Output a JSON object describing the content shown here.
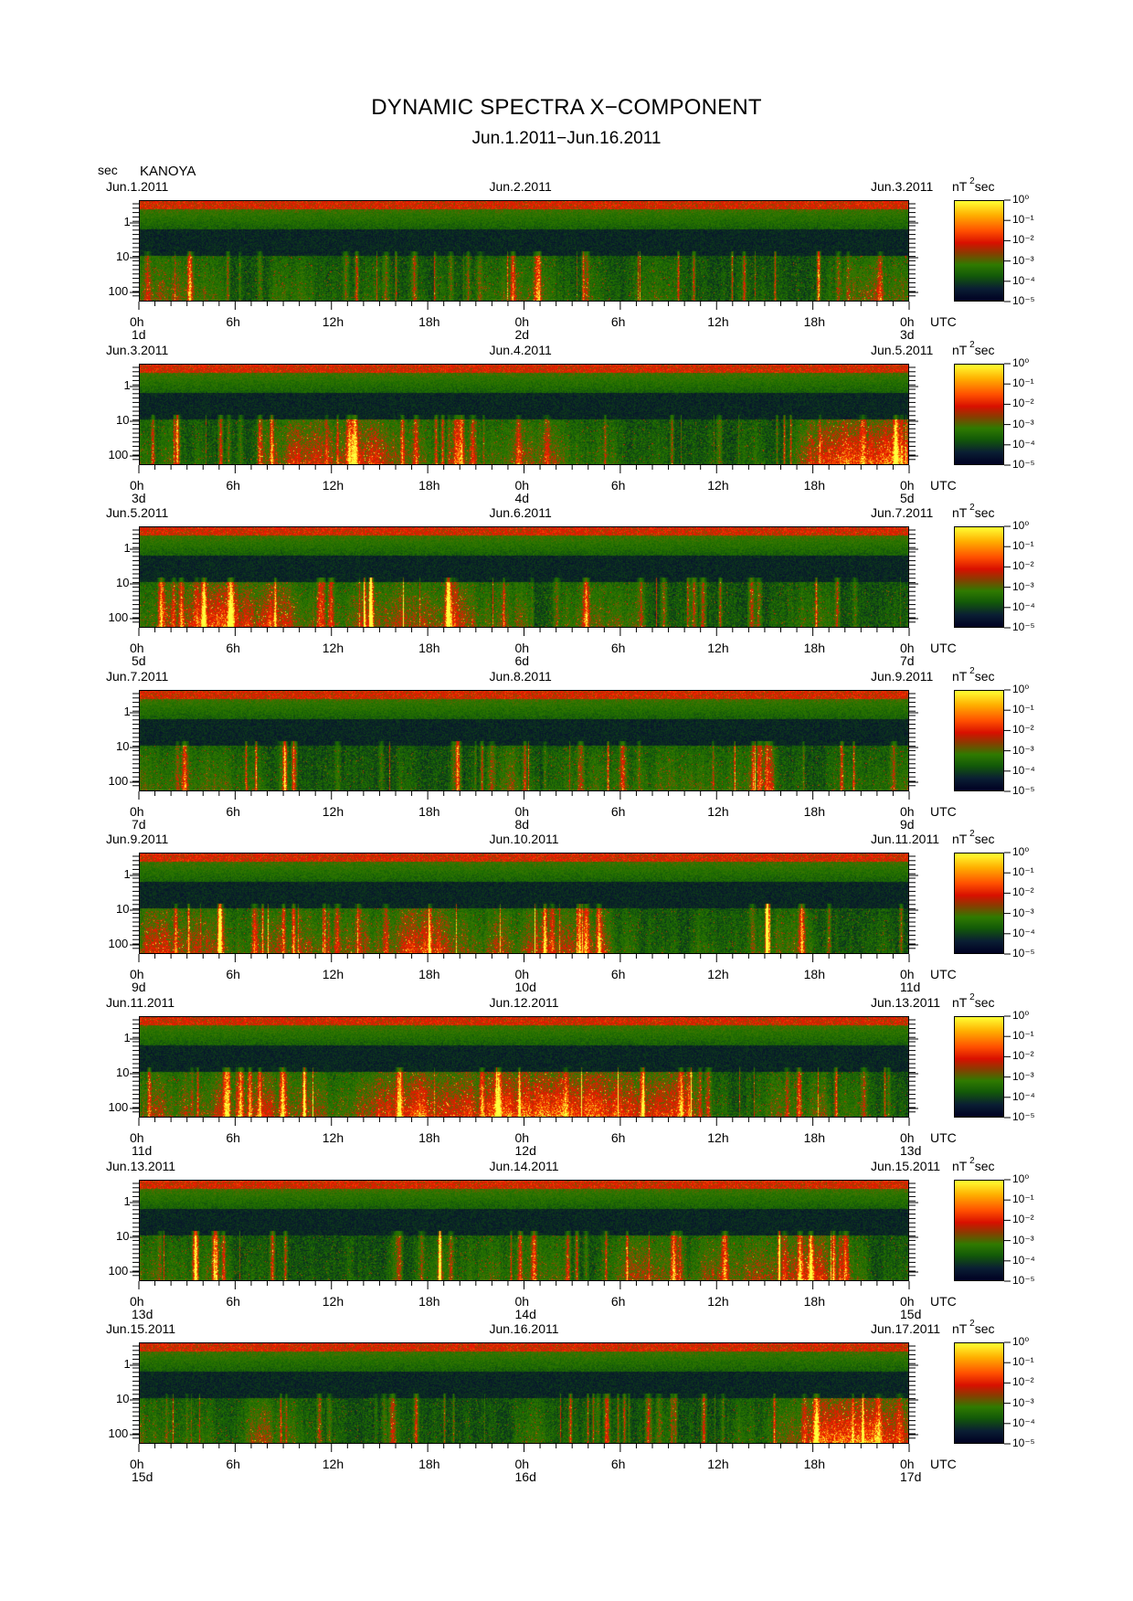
{
  "title": "DYNAMIC SPECTRA X−COMPONENT",
  "subtitle": "Jun.1.2011−Jun.16.2011",
  "station": "KANOYA",
  "y_unit": "sec",
  "colorbar_unit": "nT",
  "colorbar_unit_exp": "2",
  "colorbar_unit_suffix": "sec",
  "utc_label": "UTC",
  "chart_data": {
    "type": "heatmap",
    "title": "DYNAMIC SPECTRA X−COMPONENT",
    "subtitle": "Jun.1.2011−Jun.16.2011",
    "station": "KANOYA",
    "ylabel": "sec",
    "y_scale": "log",
    "y_ticks": [
      "1",
      "10",
      "100"
    ],
    "x_ticks": [
      "0h",
      "6h",
      "12h",
      "18h",
      "0h",
      "6h",
      "12h",
      "18h",
      "0h"
    ],
    "x_unit": "UTC",
    "colorbar": {
      "unit": "nT²sec",
      "scale": "log",
      "ticks": [
        "10⁰",
        "10⁻¹",
        "10⁻²",
        "10⁻³",
        "10⁻⁴",
        "10⁻⁵"
      ],
      "colors": [
        "#ffff33",
        "#ff5000",
        "#d81000",
        "#2f7a00",
        "#0a1e33",
        "#000022"
      ]
    },
    "panels": [
      {
        "start": "Jun.1.2011",
        "mid": "Jun.2.2011",
        "end": "Jun.3.2011",
        "day_start": "1d",
        "day_mid": "2d",
        "day_end": "3d"
      },
      {
        "start": "Jun.3.2011",
        "mid": "Jun.4.2011",
        "end": "Jun.5.2011",
        "day_start": "3d",
        "day_mid": "4d",
        "day_end": "5d"
      },
      {
        "start": "Jun.5.2011",
        "mid": "Jun.6.2011",
        "end": "Jun.7.2011",
        "day_start": "5d",
        "day_mid": "6d",
        "day_end": "7d"
      },
      {
        "start": "Jun.7.2011",
        "mid": "Jun.8.2011",
        "end": "Jun.9.2011",
        "day_start": "7d",
        "day_mid": "8d",
        "day_end": "9d"
      },
      {
        "start": "Jun.9.2011",
        "mid": "Jun.10.2011",
        "end": "Jun.11.2011",
        "day_start": "9d",
        "day_mid": "10d",
        "day_end": "11d"
      },
      {
        "start": "Jun.11.2011",
        "mid": "Jun.12.2011",
        "end": "Jun.13.2011",
        "day_start": "11d",
        "day_mid": "12d",
        "day_end": "13d"
      },
      {
        "start": "Jun.13.2011",
        "mid": "Jun.14.2011",
        "end": "Jun.15.2011",
        "day_start": "13d",
        "day_mid": "14d",
        "day_end": "15d"
      },
      {
        "start": "Jun.15.2011",
        "mid": "Jun.16.2011",
        "end": "Jun.17.2011",
        "day_start": "15d",
        "day_mid": "16d",
        "day_end": "17d"
      }
    ]
  }
}
